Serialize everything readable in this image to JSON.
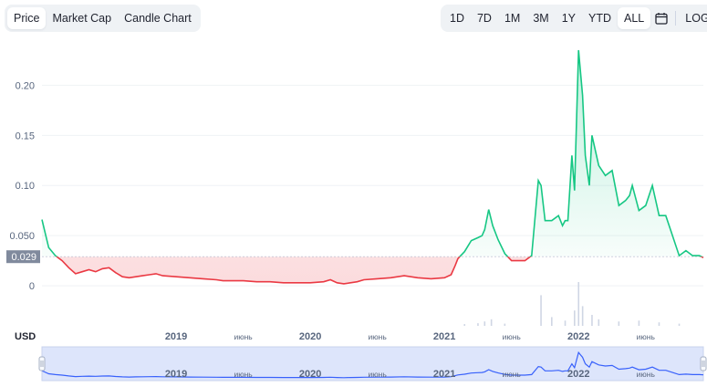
{
  "tabs": [
    {
      "label": "Price",
      "active": true
    },
    {
      "label": "Market Cap",
      "active": false
    },
    {
      "label": "Candle Chart",
      "active": false
    }
  ],
  "ranges": [
    {
      "label": "1D",
      "active": false
    },
    {
      "label": "7D",
      "active": false
    },
    {
      "label": "1M",
      "active": false
    },
    {
      "label": "3M",
      "active": false
    },
    {
      "label": "1Y",
      "active": false
    },
    {
      "label": "YTD",
      "active": false
    },
    {
      "label": "ALL",
      "active": true
    }
  ],
  "calendar_icon": "calendar-icon",
  "log_label": "LOG",
  "currency_label": "USD",
  "current_price_label": "0.029",
  "colors": {
    "up": "#16c784",
    "down": "#ea3943",
    "navigator": "#3861fb",
    "volume": "#cfd6e4",
    "grid": "#eff2f5",
    "axis_text": "#58667e"
  },
  "chart_data": {
    "type": "line",
    "reference_price": 0.029,
    "ylim": [
      -0.04,
      0.245
    ],
    "yticks": [
      {
        "value": 0,
        "label": "0"
      },
      {
        "value": 0.05,
        "label": "0.050"
      },
      {
        "value": 0.1,
        "label": "0.10"
      },
      {
        "value": 0.15,
        "label": "0.15"
      },
      {
        "value": 0.2,
        "label": "0.20"
      }
    ],
    "xlim": [
      2018.0,
      2022.93
    ],
    "xticks": [
      {
        "value": 2019.0,
        "label": "2019",
        "bold": true
      },
      {
        "value": 2019.5,
        "label": "июнь",
        "bold": false
      },
      {
        "value": 2020.0,
        "label": "2020",
        "bold": true
      },
      {
        "value": 2020.5,
        "label": "июнь",
        "bold": false
      },
      {
        "value": 2021.0,
        "label": "2021",
        "bold": true
      },
      {
        "value": 2021.5,
        "label": "июнь",
        "bold": false
      },
      {
        "value": 2022.0,
        "label": "2022",
        "bold": true
      },
      {
        "value": 2022.5,
        "label": "июнь",
        "bold": false
      }
    ],
    "series": [
      {
        "x": [
          2018.0,
          2018.02,
          2018.05,
          2018.1,
          2018.15,
          2018.2,
          2018.25,
          2018.3,
          2018.35,
          2018.4,
          2018.45,
          2018.5,
          2018.55,
          2018.6,
          2018.65,
          2018.7,
          2018.75,
          2018.8,
          2018.85,
          2018.9,
          2019.0,
          2019.1,
          2019.2,
          2019.3,
          2019.35,
          2019.4,
          2019.5,
          2019.6,
          2019.7,
          2019.8,
          2019.9,
          2020.0,
          2020.1,
          2020.15,
          2020.2,
          2020.25,
          2020.3,
          2020.35,
          2020.4,
          2020.5,
          2020.6,
          2020.7,
          2020.8,
          2020.9,
          2021.0,
          2021.05,
          2021.08,
          2021.1,
          2021.15,
          2021.2,
          2021.25,
          2021.28,
          2021.3,
          2021.33,
          2021.36,
          2021.4,
          2021.45,
          2021.5,
          2021.55,
          2021.6,
          2021.65,
          2021.7,
          2021.72,
          2021.75,
          2021.8,
          2021.85,
          2021.88,
          2021.9,
          2021.92,
          2021.95,
          2021.97,
          2022.0,
          2022.03,
          2022.05,
          2022.08,
          2022.1,
          2022.15,
          2022.2,
          2022.25,
          2022.3,
          2022.35,
          2022.38,
          2022.4,
          2022.45,
          2022.5,
          2022.55,
          2022.6,
          2022.65,
          2022.7,
          2022.75,
          2022.8,
          2022.85,
          2022.9,
          2022.93
        ],
        "y": [
          0.066,
          0.055,
          0.038,
          0.03,
          0.025,
          0.018,
          0.012,
          0.014,
          0.016,
          0.014,
          0.017,
          0.018,
          0.013,
          0.009,
          0.008,
          0.009,
          0.01,
          0.011,
          0.012,
          0.01,
          0.009,
          0.008,
          0.007,
          0.006,
          0.005,
          0.005,
          0.005,
          0.004,
          0.004,
          0.003,
          0.003,
          0.003,
          0.004,
          0.006,
          0.003,
          0.002,
          0.003,
          0.004,
          0.006,
          0.007,
          0.008,
          0.01,
          0.008,
          0.007,
          0.008,
          0.011,
          0.02,
          0.027,
          0.034,
          0.045,
          0.048,
          0.05,
          0.056,
          0.076,
          0.06,
          0.046,
          0.032,
          0.025,
          0.025,
          0.025,
          0.03,
          0.105,
          0.1,
          0.065,
          0.065,
          0.07,
          0.06,
          0.065,
          0.065,
          0.13,
          0.095,
          0.235,
          0.19,
          0.13,
          0.1,
          0.15,
          0.12,
          0.11,
          0.115,
          0.08,
          0.085,
          0.09,
          0.1,
          0.075,
          0.08,
          0.1,
          0.07,
          0.07,
          0.05,
          0.03,
          0.035,
          0.03,
          0.03,
          0.028
        ]
      }
    ],
    "volume": [
      {
        "x": 2021.15,
        "v": 0.04
      },
      {
        "x": 2021.25,
        "v": 0.06
      },
      {
        "x": 2021.3,
        "v": 0.1
      },
      {
        "x": 2021.35,
        "v": 0.15
      },
      {
        "x": 2021.45,
        "v": 0.05
      },
      {
        "x": 2021.72,
        "v": 0.7
      },
      {
        "x": 2021.8,
        "v": 0.2
      },
      {
        "x": 2021.9,
        "v": 0.12
      },
      {
        "x": 2021.97,
        "v": 0.35
      },
      {
        "x": 2022.0,
        "v": 1.0
      },
      {
        "x": 2022.03,
        "v": 0.45
      },
      {
        "x": 2022.1,
        "v": 0.25
      },
      {
        "x": 2022.15,
        "v": 0.15
      },
      {
        "x": 2022.3,
        "v": 0.1
      },
      {
        "x": 2022.45,
        "v": 0.12
      },
      {
        "x": 2022.6,
        "v": 0.08
      },
      {
        "x": 2022.75,
        "v": 0.05
      }
    ],
    "navigator_labels": [
      {
        "value": 2019.0,
        "label": "2019",
        "bold": true
      },
      {
        "value": 2019.5,
        "label": "июнь",
        "bold": false
      },
      {
        "value": 2020.0,
        "label": "2020",
        "bold": true
      },
      {
        "value": 2020.5,
        "label": "июнь",
        "bold": false
      },
      {
        "value": 2021.0,
        "label": "2021",
        "bold": true
      },
      {
        "value": 2021.5,
        "label": "июнь",
        "bold": false
      },
      {
        "value": 2022.0,
        "label": "2022",
        "bold": true
      },
      {
        "value": 2022.5,
        "label": "июнь",
        "bold": false
      }
    ]
  }
}
